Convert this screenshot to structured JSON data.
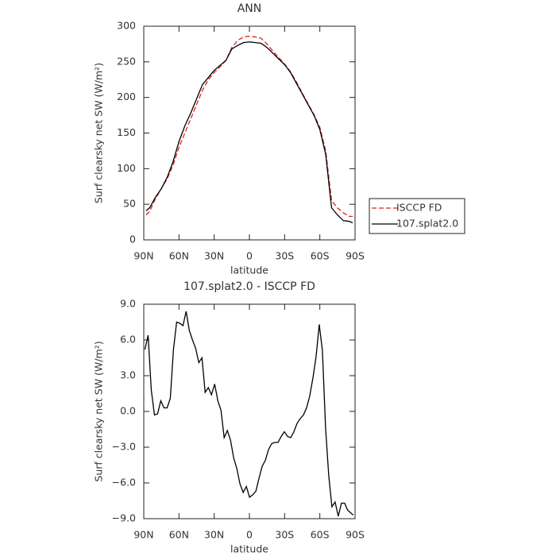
{
  "chart_data": [
    {
      "type": "line",
      "title": "ANN",
      "xlabel": "latitude",
      "ylabel": "Surf clearsky net SW (W/m²)",
      "x": [
        88,
        85,
        80,
        75,
        70,
        65,
        60,
        55,
        50,
        45,
        40,
        35,
        30,
        25,
        20,
        15,
        10,
        5,
        0,
        -5,
        -10,
        -15,
        -20,
        -25,
        -30,
        -35,
        -40,
        -45,
        -50,
        -55,
        -60,
        -65,
        -70,
        -75,
        -80,
        -85,
        -88
      ],
      "series": [
        {
          "name": "ISCCP FD",
          "color": "#e02020",
          "style": "dashed",
          "values": [
            35,
            40,
            58,
            72,
            86,
            105,
            130,
            150,
            170,
            190,
            210,
            225,
            235,
            243,
            252,
            270,
            280,
            285,
            286,
            285,
            283,
            275,
            265,
            256,
            247,
            236,
            222,
            206,
            191,
            176,
            158,
            125,
            55,
            45,
            38,
            33,
            33
          ]
        },
        {
          "name": "107.splat2.0",
          "color": "#000000",
          "style": "solid",
          "values": [
            41,
            45,
            60,
            72,
            88,
            110,
            138,
            160,
            178,
            198,
            218,
            228,
            238,
            245,
            252,
            268,
            273,
            277,
            278,
            277,
            276,
            270,
            262,
            254,
            246,
            235,
            220,
            205,
            190,
            175,
            155,
            120,
            45,
            35,
            27,
            26,
            24
          ]
        }
      ],
      "xlim": [
        90,
        -90
      ],
      "xticks": [
        {
          "value": 90,
          "label": "90N"
        },
        {
          "value": 60,
          "label": "60N"
        },
        {
          "value": 30,
          "label": "30N"
        },
        0,
        {
          "value": -30,
          "label": "30S"
        },
        {
          "value": -60,
          "label": "60S"
        },
        {
          "value": -90,
          "label": "90S"
        }
      ],
      "ylim": [
        0,
        300
      ],
      "yticks": [
        0,
        50,
        100,
        150,
        200,
        250,
        300
      ],
      "legend": "right"
    },
    {
      "type": "line",
      "title": "107.splat2.0 - ISCCP FD",
      "xlabel": "latitude",
      "ylabel": "Surf clearsky net SW (W/m²)",
      "x": [
        89,
        86.3,
        83.6,
        80.9,
        78.2,
        75.5,
        72.8,
        70.1,
        67.4,
        64.7,
        62,
        59.3,
        56.6,
        53.9,
        51.2,
        48.5,
        45.8,
        43.1,
        40.4,
        37.7,
        35,
        32.3,
        29.6,
        26.9,
        24.2,
        21.5,
        18.8,
        16.1,
        13.4,
        10.7,
        8,
        5.3,
        2.6,
        -0.1,
        -2.8,
        -5.5,
        -8.2,
        -10.9,
        -13.6,
        -16.3,
        -19,
        -21.7,
        -24.4,
        -27.1,
        -29.8,
        -32.5,
        -35.2,
        -37.9,
        -40.6,
        -43.3,
        -46,
        -48.7,
        -51.4,
        -54.1,
        -56.8,
        -59.5,
        -62.2,
        -64.9,
        -67.6,
        -70.3,
        -73,
        -75.7,
        -78.4,
        -81.1,
        -83.8,
        -88.5
      ],
      "series": [
        {
          "color": "#000000",
          "style": "solid",
          "values": [
            5.2,
            6.4,
            1.8,
            -0.3,
            -0.2,
            0.9,
            0.3,
            0.3,
            1.1,
            5.2,
            7.5,
            7.4,
            7.2,
            8.4,
            6.8,
            6.0,
            5.3,
            4.1,
            4.5,
            1.6,
            2.0,
            1.4,
            2.3,
            0.9,
            0.1,
            -2.2,
            -1.6,
            -2.4,
            -3.9,
            -4.8,
            -6.1,
            -6.8,
            -6.3,
            -7.2,
            -7.0,
            -6.7,
            -5.6,
            -4.6,
            -4.1,
            -3.2,
            -2.7,
            -2.6,
            -2.6,
            -2.1,
            -1.7,
            -2.1,
            -2.2,
            -1.7,
            -1.0,
            -0.6,
            -0.3,
            0.3,
            1.3,
            2.8,
            4.6,
            7.3,
            5.1,
            -1.4,
            -5.4,
            -8.0,
            -7.6,
            -8.8,
            -7.7,
            -7.7,
            -8.3,
            -8.7
          ]
        }
      ],
      "xlim": [
        90,
        -90
      ],
      "xticks": [
        {
          "value": 90,
          "label": "90N"
        },
        {
          "value": 60,
          "label": "60N"
        },
        {
          "value": 30,
          "label": "30N"
        },
        0,
        {
          "value": -30,
          "label": "30S"
        },
        {
          "value": -60,
          "label": "60S"
        },
        {
          "value": -90,
          "label": "90S"
        }
      ],
      "ylim": [
        -9,
        9
      ],
      "yticks": [
        {
          "value": -9,
          "label": "−9.0"
        },
        {
          "value": -6,
          "label": "−6.0"
        },
        {
          "value": -3,
          "label": "−3.0"
        },
        {
          "value": 0,
          "label": "0.0"
        },
        {
          "value": 3,
          "label": "3.0"
        },
        {
          "value": 6,
          "label": "6.0"
        },
        {
          "value": 9,
          "label": "9.0"
        }
      ]
    }
  ]
}
